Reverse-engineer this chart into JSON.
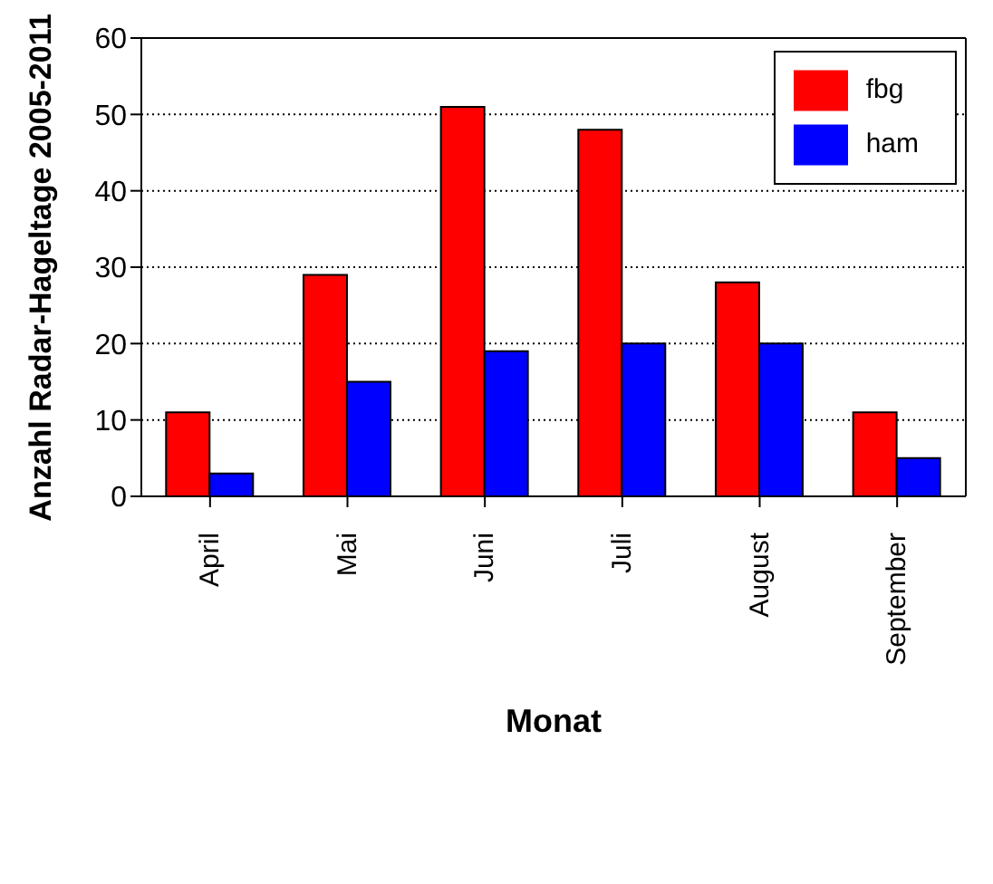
{
  "chart_data": {
    "type": "bar",
    "xlabel": "Monat",
    "ylabel": "Anzahl Radar-Hageltage 2005-2011",
    "categories": [
      "April",
      "Mai",
      "Juni",
      "Juli",
      "August",
      "September"
    ],
    "series": [
      {
        "name": "fbg",
        "color": "#ff0000",
        "values": [
          11,
          29,
          51,
          48,
          28,
          11
        ]
      },
      {
        "name": "ham",
        "color": "#0000ff",
        "values": [
          3,
          15,
          19,
          20,
          20,
          5
        ]
      }
    ],
    "ylim": [
      0,
      60
    ],
    "yticks": [
      0,
      10,
      20,
      30,
      40,
      50,
      60
    ],
    "grid": "y",
    "legend": "top right"
  }
}
